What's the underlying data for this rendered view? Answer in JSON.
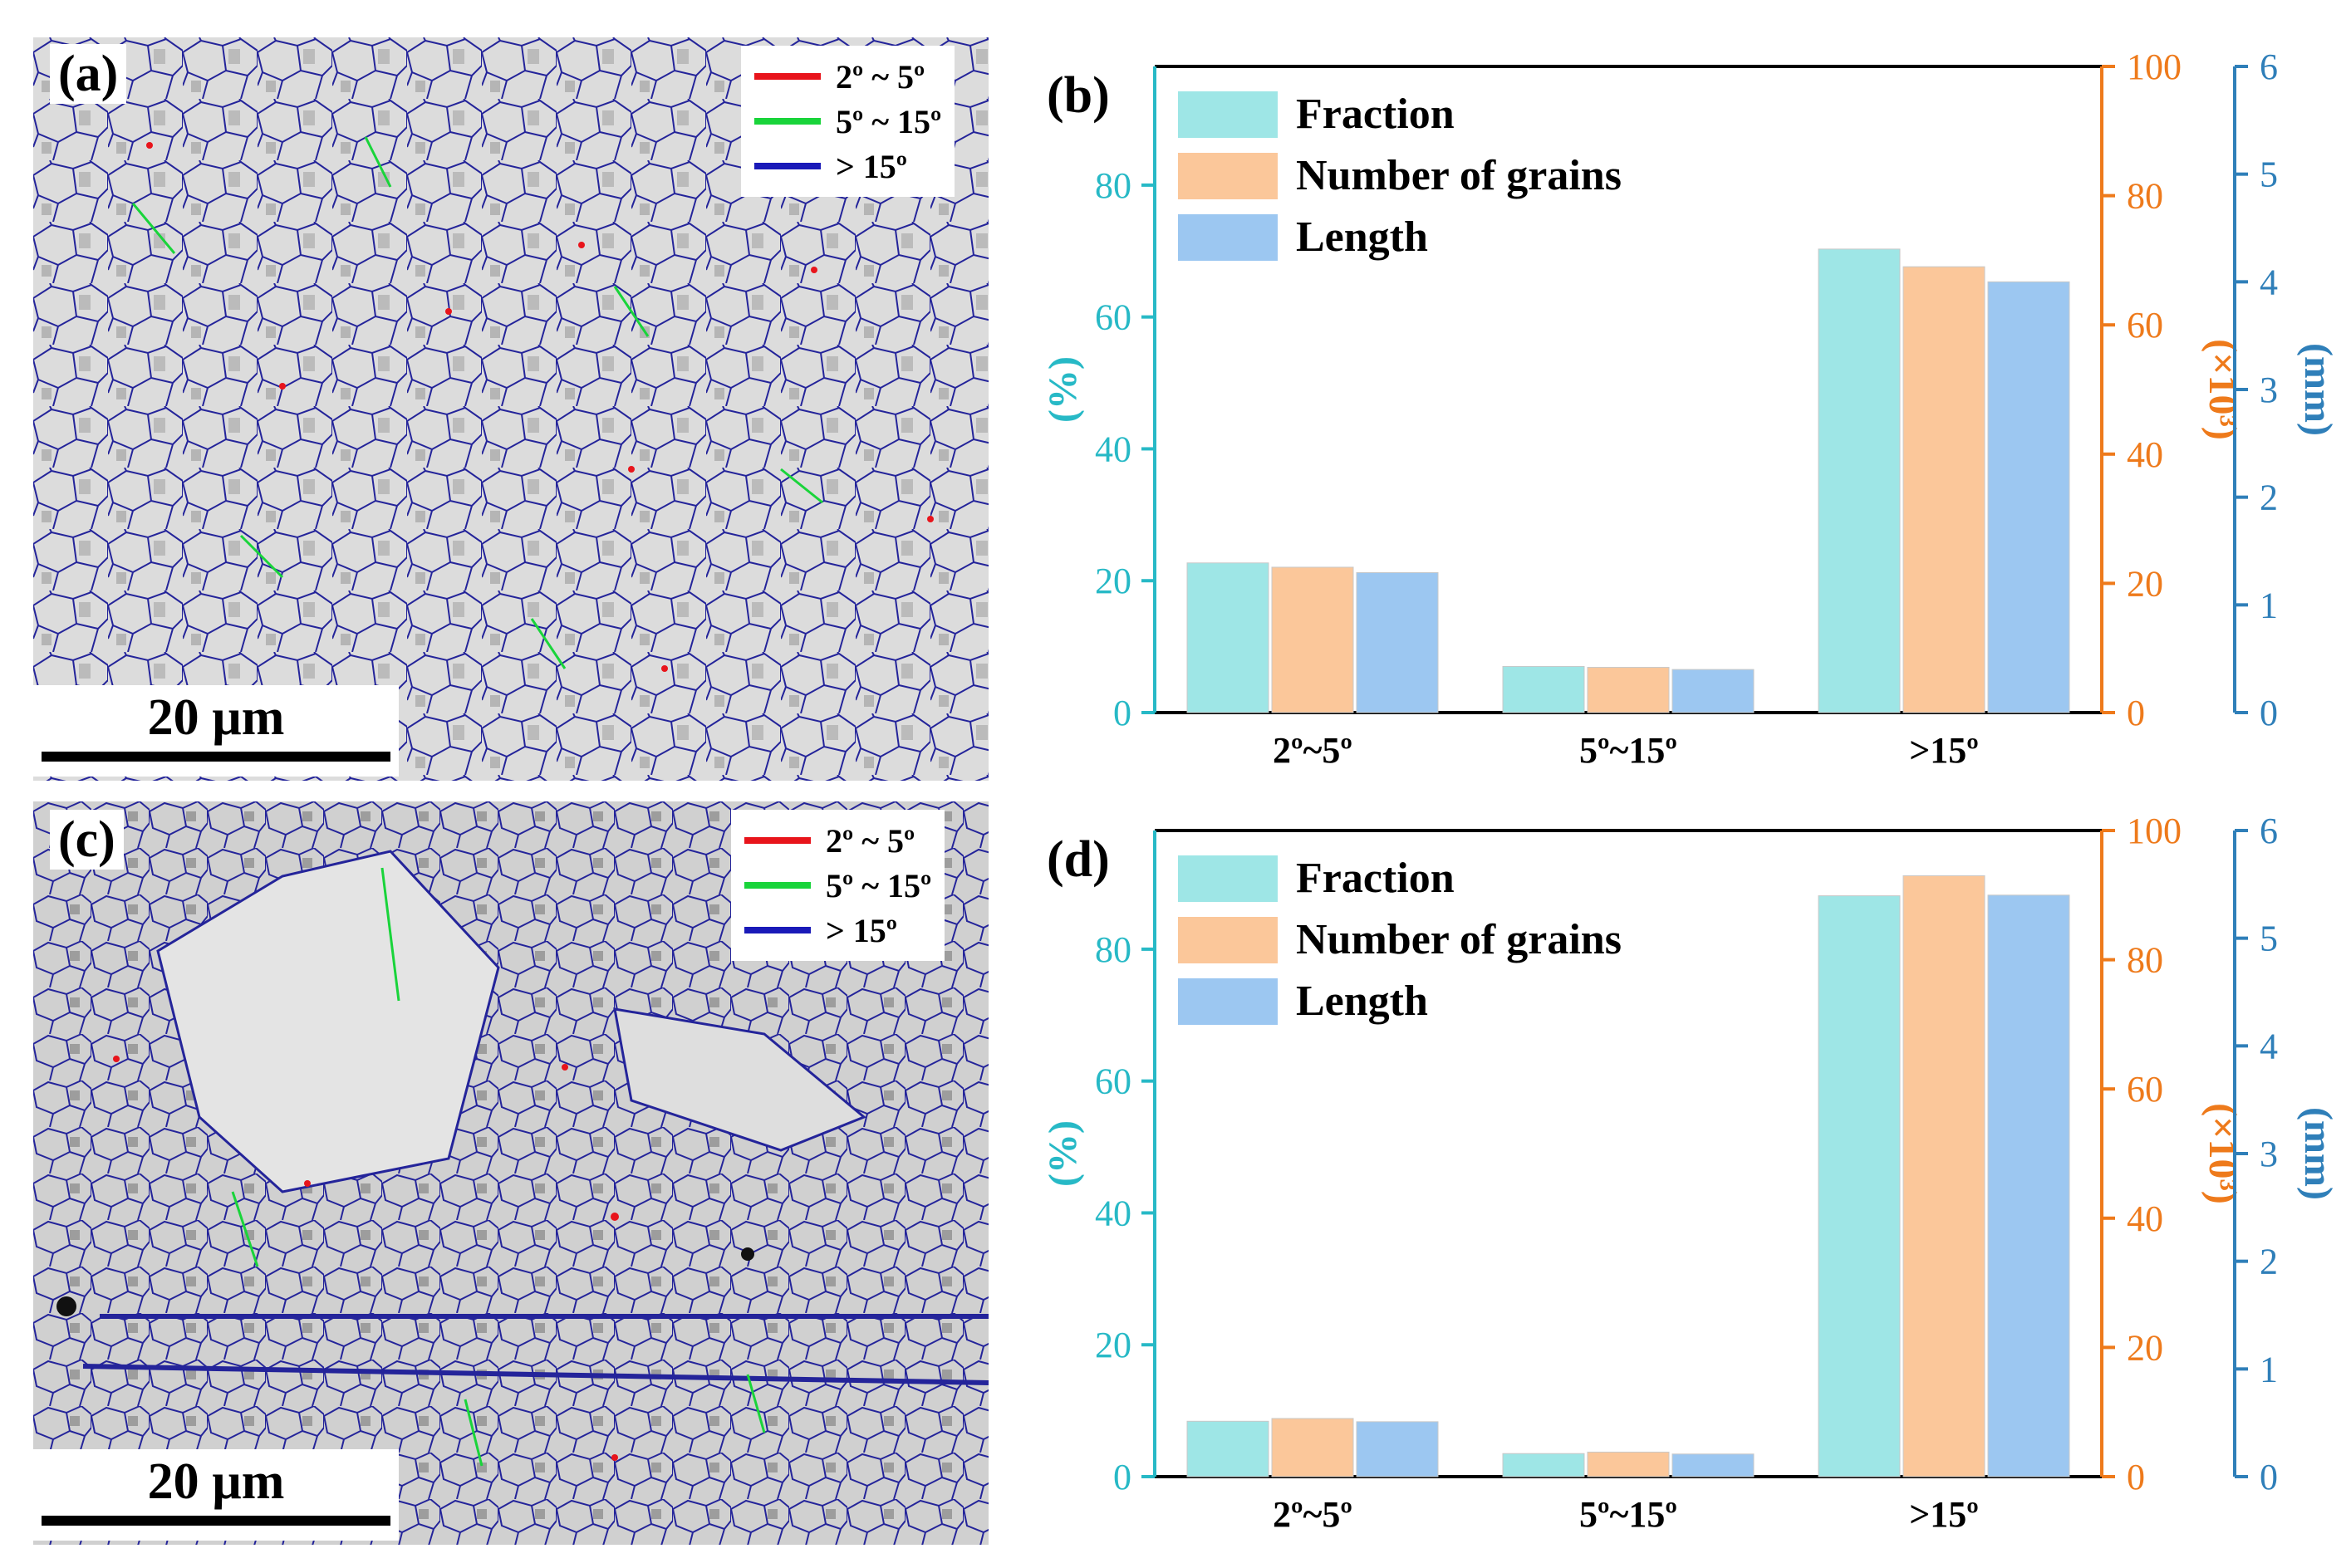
{
  "figure": {
    "panels": [
      {
        "id": "a",
        "label": "(a)",
        "legend": [
          {
            "text": "2º ~ 5º",
            "color": "#e8141b"
          },
          {
            "text": "5º ~ 15º",
            "color": "#19d43a"
          },
          {
            "text": "> 15º",
            "color": "#1a1ab8"
          }
        ],
        "scale_bar": "20 µm"
      },
      {
        "id": "c",
        "label": "(c)",
        "legend": [
          {
            "text": "2º ~ 5º",
            "color": "#e8141b"
          },
          {
            "text": "5º ~ 15º",
            "color": "#19d43a"
          },
          {
            "text": "> 15º",
            "color": "#1a1ab8"
          }
        ],
        "scale_bar": "20 µm"
      }
    ]
  },
  "chart_data": [
    {
      "panel_label": "(b)",
      "type": "bar",
      "categories": [
        "2º~5º",
        "5º~15º",
        ">15º"
      ],
      "series": [
        {
          "name": "Fraction",
          "axis": "left",
          "color": "#9ee6e6",
          "values": [
            22.7,
            7.0,
            70.3
          ]
        },
        {
          "name": "Number of grains",
          "axis": "right",
          "color": "#fbc79a",
          "values": [
            22.5,
            7.0,
            69.0
          ]
        },
        {
          "name": "Length",
          "axis": "far-right",
          "color": "#9cc7f1",
          "values": [
            1.3,
            0.4,
            4.0
          ]
        }
      ],
      "axes": {
        "left": {
          "label": "(%)",
          "ylim": [
            0,
            98
          ],
          "ticks": [
            0,
            20,
            40,
            60,
            80
          ],
          "color": "#27b9c6"
        },
        "right": {
          "label": "(×10³)",
          "ylim": [
            0,
            100
          ],
          "ticks": [
            0,
            20,
            40,
            60,
            80,
            100
          ],
          "color": "#ee7a1b"
        },
        "far_right": {
          "label": "(mm)",
          "ylim": [
            0,
            6
          ],
          "ticks": [
            0,
            1,
            2,
            3,
            4,
            5,
            6
          ],
          "color": "#2f7fb9"
        }
      },
      "legend_position": "top-left"
    },
    {
      "panel_label": "(d)",
      "type": "bar",
      "categories": [
        "2º~5º",
        "5º~15º",
        ">15º"
      ],
      "series": [
        {
          "name": "Fraction",
          "axis": "left",
          "color": "#9ee6e6",
          "values": [
            8.4,
            3.5,
            88.1
          ]
        },
        {
          "name": "Number of grains",
          "axis": "right",
          "color": "#fbc79a",
          "values": [
            9.0,
            3.8,
            93.0
          ]
        },
        {
          "name": "Length",
          "axis": "far-right",
          "color": "#9cc7f1",
          "values": [
            0.51,
            0.21,
            5.4
          ]
        }
      ],
      "axes": {
        "left": {
          "label": "(%)",
          "ylim": [
            0,
            98
          ],
          "ticks": [
            0,
            20,
            40,
            60,
            80
          ],
          "color": "#27b9c6"
        },
        "right": {
          "label": "(×10³)",
          "ylim": [
            0,
            100
          ],
          "ticks": [
            0,
            20,
            40,
            60,
            80,
            100
          ],
          "color": "#ee7a1b"
        },
        "far_right": {
          "label": "(mm)",
          "ylim": [
            0,
            6
          ],
          "ticks": [
            0,
            1,
            2,
            3,
            4,
            5,
            6
          ],
          "color": "#2f7fb9"
        }
      },
      "legend_position": "top-left"
    }
  ]
}
